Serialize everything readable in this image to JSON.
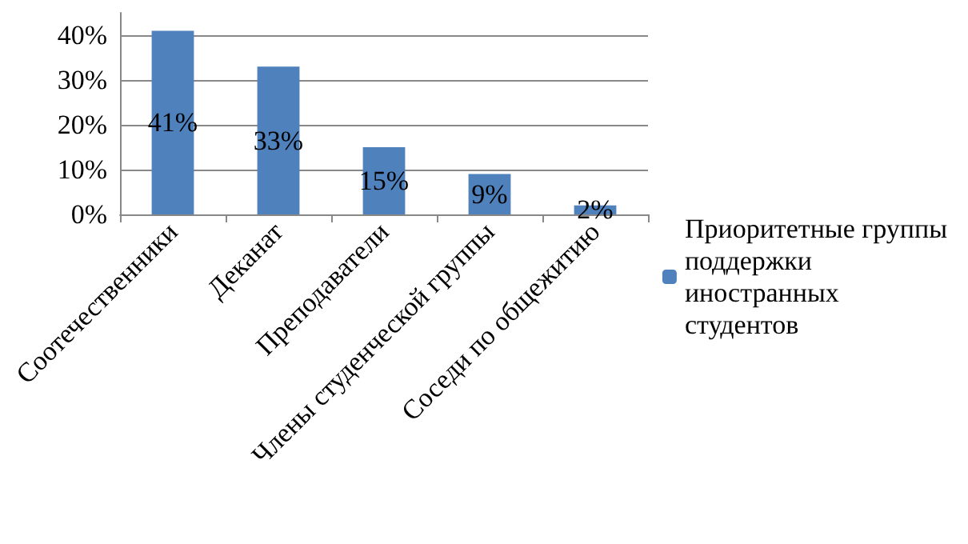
{
  "chart_data": {
    "type": "bar",
    "categories": [
      "Соотечественники",
      "Деканат",
      "Преподаватели",
      "Члены студенческой группы",
      "Соседи по общежитию"
    ],
    "series": [
      {
        "name": "Приоритетные группы поддержки иностранных студентов",
        "color": "#4f81bd",
        "values": [
          41,
          33,
          15,
          9,
          2
        ],
        "value_labels": [
          "41%",
          "33%",
          "15%",
          "9%",
          "2%"
        ]
      }
    ],
    "ylim": [
      0,
      45
    ],
    "yticks": [
      {
        "value": 0,
        "label": "0%"
      },
      {
        "value": 10,
        "label": "10%"
      },
      {
        "value": 20,
        "label": "20%"
      },
      {
        "value": 30,
        "label": "30%"
      },
      {
        "value": 40,
        "label": "40%"
      }
    ],
    "grid": "y",
    "legend": "right"
  }
}
